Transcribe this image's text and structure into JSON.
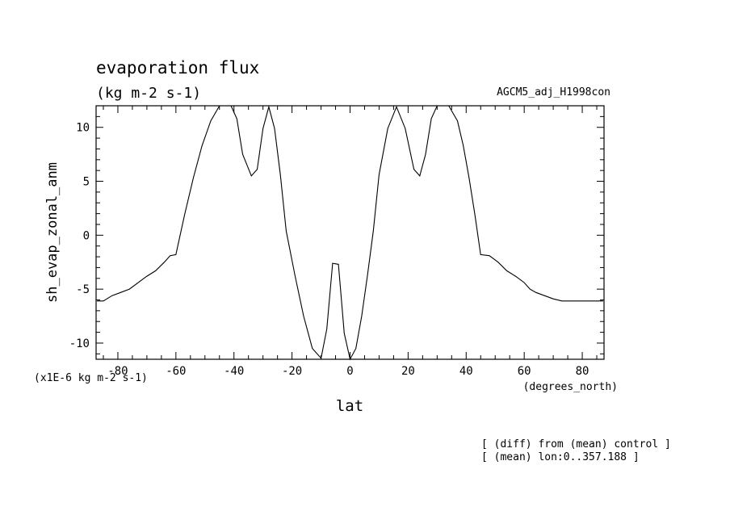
{
  "chart_data": {
    "type": "line",
    "title": "evaporation flux",
    "subtitle": "(kg m-2 s-1)",
    "experiment": "AGCM5_adj_H1998con",
    "xlabel": "lat",
    "xunit": "(degrees_north)",
    "ylabel": "sh_evap_zonal_anm",
    "yunit": "(x1E-6 kg m-2 s-1)",
    "xlim": [
      -87.5,
      87.5
    ],
    "ylim": [
      -11.5,
      12
    ],
    "xticks": [
      -80,
      -60,
      -40,
      -20,
      0,
      20,
      40,
      60,
      80
    ],
    "yticks": [
      -10,
      -5,
      0,
      5,
      10
    ],
    "grid": false,
    "notes": [
      "[ (diff) from (mean) control ]",
      "[ (mean) lon:0..357.188 ]"
    ],
    "series": [
      {
        "x": [
          -87.2,
          -85,
          -82,
          -79,
          -76,
          -73,
          -70,
          -67,
          -64,
          -62,
          -60,
          -57,
          -54,
          -51,
          -48,
          -45,
          -43,
          -41,
          -39,
          -37,
          -34,
          -32,
          -30,
          -28,
          -26,
          -24,
          -22,
          -19,
          -16,
          -13,
          -10,
          -8,
          -6,
          -4,
          -2,
          0,
          2,
          4,
          6,
          8,
          10,
          13,
          16,
          19,
          22,
          24,
          26,
          28,
          30,
          32,
          34,
          37,
          39,
          41,
          43,
          45,
          48,
          51,
          54,
          57,
          60,
          62,
          64,
          67,
          70,
          73,
          76,
          79,
          82,
          85,
          87.2
        ],
        "y": [
          -6.1,
          -6.1,
          -5.6,
          -5.3,
          -5.0,
          -4.4,
          -3.8,
          -3.3,
          -2.5,
          -1.9,
          -1.8,
          1.9,
          5.3,
          8.3,
          10.6,
          12.0,
          12.0,
          12.0,
          10.8,
          7.5,
          5.5,
          6.1,
          9.9,
          11.9,
          9.9,
          5.6,
          0.4,
          -3.7,
          -7.5,
          -10.5,
          -11.4,
          -8.7,
          -2.6,
          -2.7,
          -9.1,
          -11.8,
          -10.5,
          -7.5,
          -3.7,
          0.4,
          5.6,
          9.9,
          11.9,
          9.9,
          6.1,
          5.5,
          7.5,
          10.8,
          12.0,
          12.0,
          12.0,
          10.6,
          8.3,
          5.3,
          1.9,
          -1.8,
          -1.9,
          -2.5,
          -3.3,
          -3.8,
          -4.4,
          -5.0,
          -5.3,
          -5.6,
          -5.9,
          -6.1,
          -6.1,
          -6.1,
          -6.1,
          -6.1,
          -6.1
        ]
      }
    ]
  }
}
